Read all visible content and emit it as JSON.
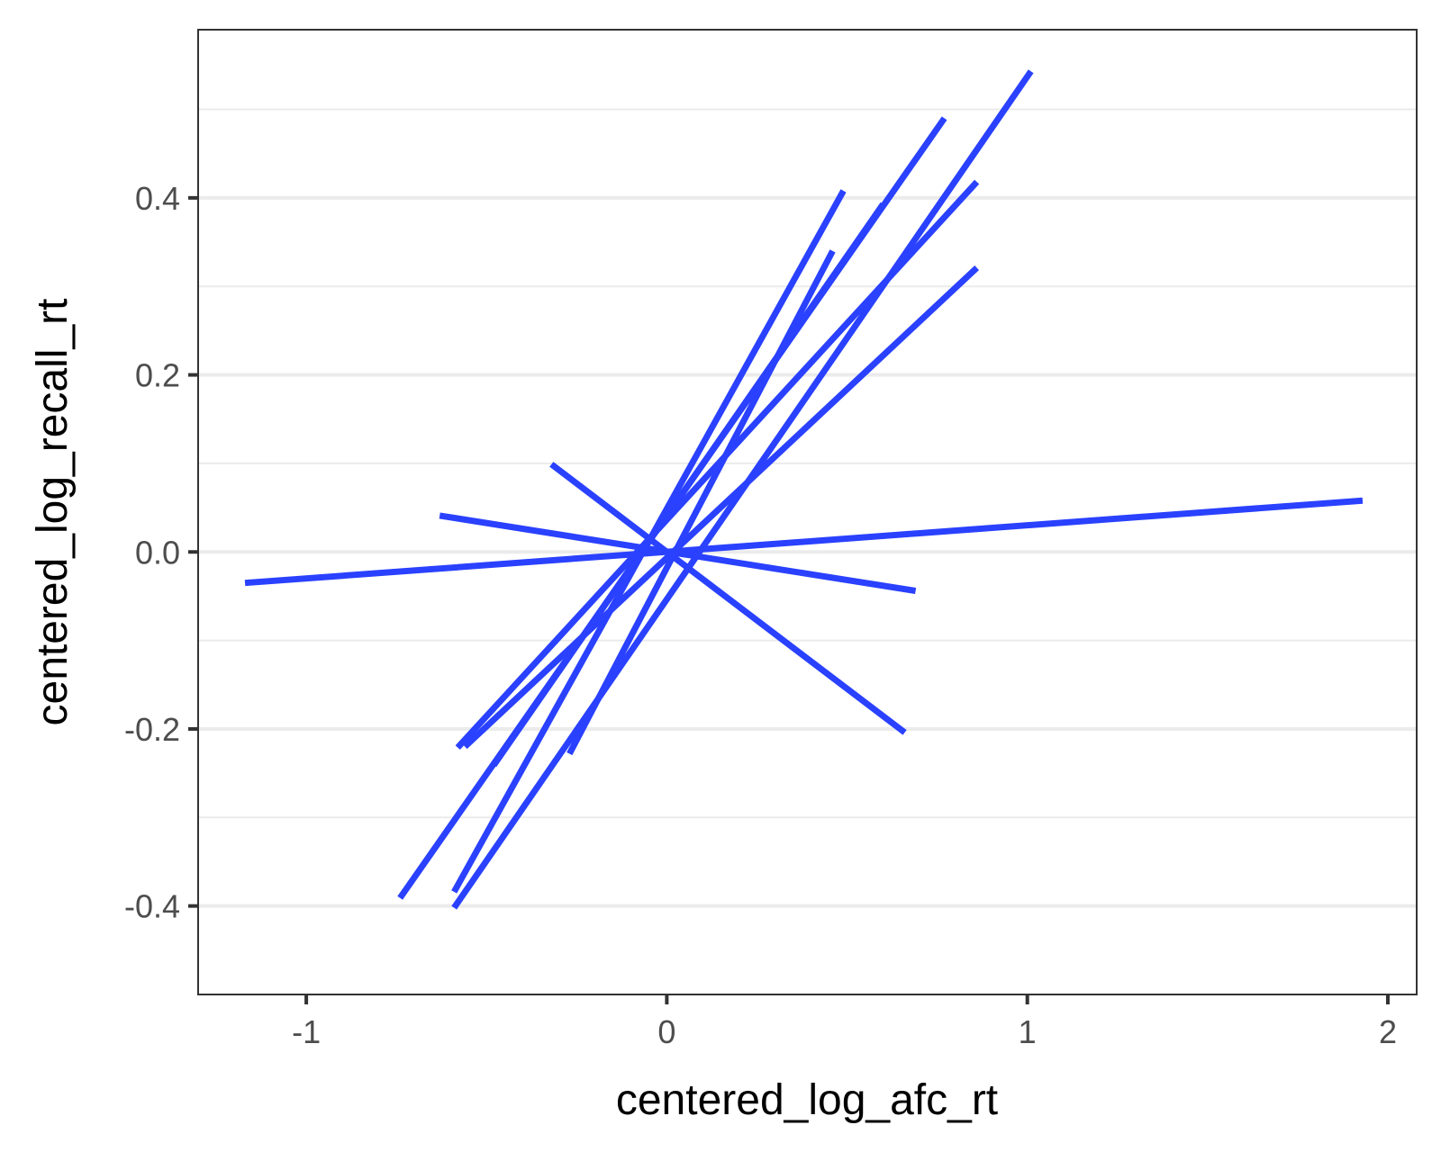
{
  "chart_data": {
    "type": "line",
    "title": "",
    "xlabel": "centered_log_afc_rt",
    "ylabel": "centered_log_recall_rt",
    "xlim": [
      -1.3,
      2.08
    ],
    "ylim": [
      -0.5,
      0.59
    ],
    "x_ticks": [
      -1,
      0,
      1,
      2
    ],
    "x_tick_labels": [
      "-1",
      "0",
      "1",
      "2"
    ],
    "y_ticks": [
      -0.4,
      -0.2,
      0.0,
      0.2,
      0.4
    ],
    "y_tick_labels": [
      "-0.4",
      "-0.2",
      "0.0",
      "0.2",
      "0.4"
    ],
    "grid": "horizontal",
    "line_color": "#2a41ff",
    "series": [
      {
        "x": [
          -1.17,
          1.93
        ],
        "y": [
          -0.035,
          0.058
        ]
      },
      {
        "x": [
          -0.63,
          0.69
        ],
        "y": [
          0.041,
          -0.044
        ]
      },
      {
        "x": [
          -0.32,
          0.66
        ],
        "y": [
          0.099,
          -0.204
        ]
      },
      {
        "x": [
          -0.59,
          1.01
        ],
        "y": [
          -0.402,
          0.543
        ]
      },
      {
        "x": [
          -0.74,
          0.77
        ],
        "y": [
          -0.391,
          0.49
        ]
      },
      {
        "x": [
          -0.59,
          0.49
        ],
        "y": [
          -0.384,
          0.408
        ]
      },
      {
        "x": [
          -0.48,
          0.6
        ],
        "y": [
          -0.241,
          0.393
        ]
      },
      {
        "x": [
          -0.58,
          0.86
        ],
        "y": [
          -0.221,
          0.418
        ]
      },
      {
        "x": [
          -0.56,
          0.86
        ],
        "y": [
          -0.22,
          0.321
        ]
      },
      {
        "x": [
          -0.27,
          0.46
        ],
        "y": [
          -0.228,
          0.34
        ]
      }
    ]
  }
}
